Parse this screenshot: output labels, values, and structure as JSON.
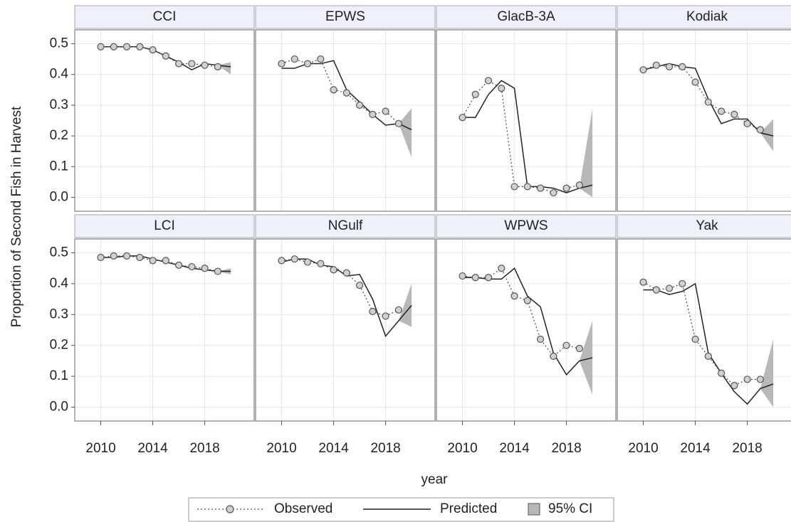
{
  "chart_data": {
    "type": "line",
    "y_label": "Proportion of Second Fish in Harvest",
    "x_label": "year",
    "xlim": [
      2008,
      2021.8
    ],
    "ylim": [
      -0.045,
      0.545
    ],
    "xticks": [
      2010,
      2014,
      2018
    ],
    "yticks": [
      {
        "value": 0,
        "label": "0.0"
      },
      0.1,
      0.2,
      0.3,
      0.4,
      0.5
    ],
    "grid": true,
    "x": [
      2010,
      2011,
      2012,
      2013,
      2014,
      2015,
      2016,
      2017,
      2018,
      2019
    ],
    "x_pred": [
      2010,
      2011,
      2012,
      2013,
      2014,
      2015,
      2016,
      2017,
      2018,
      2019,
      2020
    ],
    "ci_x": [
      2019,
      2020
    ],
    "series": [
      {
        "name": "Observed",
        "color": "#555555"
      },
      {
        "name": "Predicted",
        "color": "#222222"
      },
      {
        "name": "95% CI",
        "color": "#b8b8b8"
      }
    ],
    "panels": [
      {
        "title": "CCI",
        "observed": [
          0.49,
          0.49,
          0.49,
          0.49,
          0.48,
          0.46,
          0.435,
          0.435,
          0.43,
          0.425
        ],
        "predicted": [
          0.49,
          0.49,
          0.49,
          0.49,
          0.48,
          0.46,
          0.44,
          0.415,
          0.435,
          0.43,
          0.425
        ],
        "ci_lower": [
          0.43,
          0.4
        ],
        "ci_upper": [
          0.43,
          0.44
        ]
      },
      {
        "title": "EPWS",
        "observed": [
          0.435,
          0.45,
          0.435,
          0.45,
          0.35,
          0.34,
          0.3,
          0.27,
          0.28,
          0.24
        ],
        "predicted": [
          0.42,
          0.42,
          0.435,
          0.435,
          0.445,
          0.35,
          0.31,
          0.27,
          0.235,
          0.24,
          0.22
        ],
        "ci_lower": [
          0.24,
          0.13
        ],
        "ci_upper": [
          0.24,
          0.29
        ]
      },
      {
        "title": "GlacB-3A",
        "observed": [
          0.26,
          0.335,
          0.38,
          0.355,
          0.035,
          0.035,
          0.03,
          0.015,
          0.03,
          0.04
        ],
        "predicted": [
          0.26,
          0.26,
          0.335,
          0.38,
          0.355,
          0.035,
          0.035,
          0.03,
          0.015,
          0.03,
          0.04
        ],
        "ci_lower": [
          0.03,
          0.0
        ],
        "ci_upper": [
          0.03,
          0.29
        ]
      },
      {
        "title": "Kodiak",
        "observed": [
          0.415,
          0.43,
          0.425,
          0.425,
          0.375,
          0.31,
          0.28,
          0.27,
          0.24,
          0.22
        ],
        "predicted": [
          0.415,
          0.425,
          0.435,
          0.425,
          0.42,
          0.32,
          0.24,
          0.255,
          0.255,
          0.21,
          0.2
        ],
        "ci_lower": [
          0.21,
          0.15
        ],
        "ci_upper": [
          0.21,
          0.255
        ]
      },
      {
        "title": "LCI",
        "observed": [
          0.485,
          0.49,
          0.49,
          0.485,
          0.475,
          0.475,
          0.46,
          0.455,
          0.45,
          0.44
        ],
        "predicted": [
          0.485,
          0.485,
          0.49,
          0.49,
          0.48,
          0.47,
          0.46,
          0.45,
          0.445,
          0.44,
          0.44
        ],
        "ci_lower": [
          0.44,
          0.43
        ],
        "ci_upper": [
          0.44,
          0.45
        ]
      },
      {
        "title": "NGulf",
        "observed": [
          0.475,
          0.48,
          0.47,
          0.465,
          0.445,
          0.435,
          0.395,
          0.31,
          0.295,
          0.315
        ],
        "predicted": [
          0.47,
          0.48,
          0.48,
          0.46,
          0.455,
          0.425,
          0.43,
          0.35,
          0.23,
          0.28,
          0.33
        ],
        "ci_lower": [
          0.28,
          0.26
        ],
        "ci_upper": [
          0.28,
          0.4
        ]
      },
      {
        "title": "WPWS",
        "observed": [
          0.425,
          0.42,
          0.42,
          0.45,
          0.36,
          0.345,
          0.22,
          0.165,
          0.2,
          0.19
        ],
        "predicted": [
          0.42,
          0.42,
          0.415,
          0.415,
          0.45,
          0.36,
          0.325,
          0.175,
          0.105,
          0.15,
          0.16
        ],
        "ci_lower": [
          0.15,
          0.04
        ],
        "ci_upper": [
          0.15,
          0.28
        ]
      },
      {
        "title": "Yak",
        "observed": [
          0.405,
          0.38,
          0.385,
          0.4,
          0.22,
          0.165,
          0.11,
          0.07,
          0.09,
          0.09
        ],
        "predicted": [
          0.38,
          0.38,
          0.365,
          0.375,
          0.4,
          0.175,
          0.11,
          0.05,
          0.01,
          0.06,
          0.075
        ],
        "ci_lower": [
          0.06,
          0.0
        ],
        "ci_upper": [
          0.06,
          0.22
        ]
      }
    ]
  }
}
